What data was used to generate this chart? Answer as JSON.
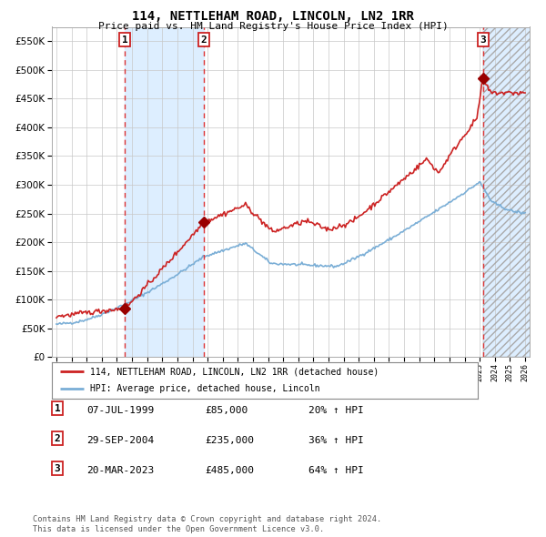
{
  "title": "114, NETTLEHAM ROAD, LINCOLN, LN2 1RR",
  "subtitle": "Price paid vs. HM Land Registry's House Price Index (HPI)",
  "xlim_start": 1995.0,
  "xlim_end": 2026.0,
  "ylim": [
    0,
    575000
  ],
  "yticks": [
    0,
    50000,
    100000,
    150000,
    200000,
    250000,
    300000,
    350000,
    400000,
    450000,
    500000,
    550000
  ],
  "sale_dates": [
    1999.52,
    2004.75,
    2023.22
  ],
  "sale_prices": [
    85000,
    235000,
    485000
  ],
  "sale_labels": [
    "1",
    "2",
    "3"
  ],
  "hpi_color": "#7aaed6",
  "price_color": "#cc2222",
  "marker_color": "#990000",
  "bg_color": "#ffffff",
  "grid_color": "#c8c8c8",
  "vline_color": "#dd3333",
  "shade_color": "#ddeeff",
  "legend_entries": [
    "114, NETTLEHAM ROAD, LINCOLN, LN2 1RR (detached house)",
    "HPI: Average price, detached house, Lincoln"
  ],
  "table_rows": [
    {
      "num": "1",
      "date": "07-JUL-1999",
      "price": "£85,000",
      "hpi": "20% ↑ HPI"
    },
    {
      "num": "2",
      "date": "29-SEP-2004",
      "price": "£235,000",
      "hpi": "36% ↑ HPI"
    },
    {
      "num": "3",
      "date": "20-MAR-2023",
      "price": "£485,000",
      "hpi": "64% ↑ HPI"
    }
  ],
  "footnote1": "Contains HM Land Registry data © Crown copyright and database right 2024.",
  "footnote2": "This data is licensed under the Open Government Licence v3.0."
}
